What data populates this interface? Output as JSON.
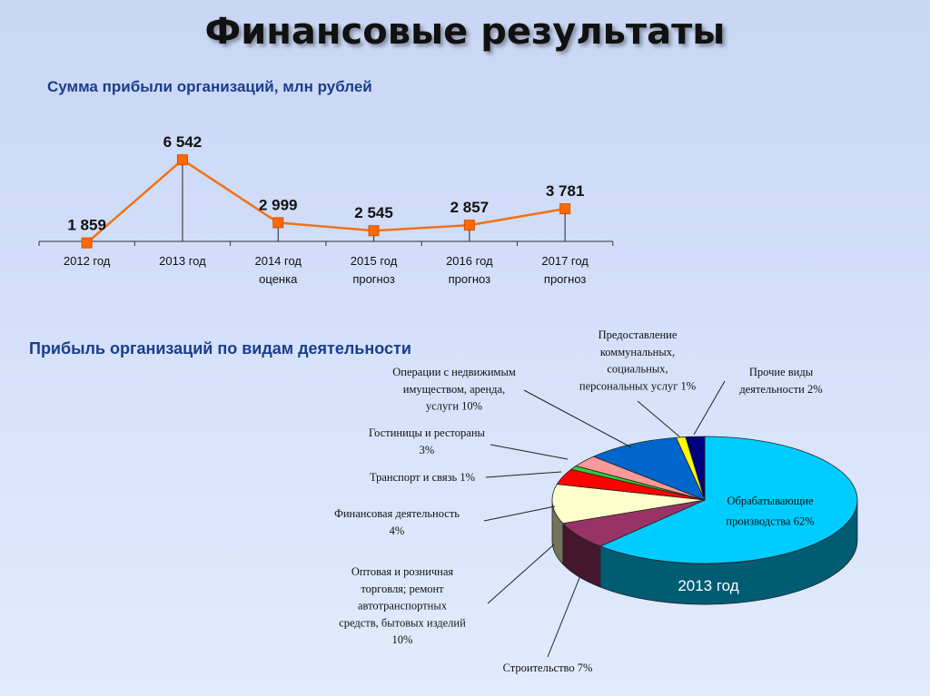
{
  "page": {
    "title": "Финансовые результаты",
    "line_subtitle": "Сумма прибыли организаций, млн рублей",
    "pie_subtitle": "Прибыль организаций по видам деятельности"
  },
  "colors": {
    "line": "#f07214",
    "marker": "#ff6a00",
    "title_blue": "#1c3d8c"
  },
  "chart_data": [
    {
      "type": "line",
      "title": "Сумма прибыли организаций, млн рублей",
      "categories": [
        [
          "2012 год"
        ],
        [
          "2013 год"
        ],
        [
          "2014 год",
          "оценка"
        ],
        [
          "2015 год",
          "прогноз"
        ],
        [
          "2016 год",
          "прогноз"
        ],
        [
          "2017 год",
          "прогноз"
        ]
      ],
      "values": [
        1859,
        6542,
        2999,
        2545,
        2857,
        3781
      ],
      "value_labels": [
        "1 859",
        "6 542",
        "2 999",
        "2 545",
        "2 857",
        "3 781"
      ],
      "marker": "square",
      "grid": false
    },
    {
      "type": "pie",
      "style": "3d",
      "title": "Прибыль организаций по видам деятельности",
      "center_label": "2013 год",
      "slices": [
        {
          "label": "Обрабатывающие производства 62%",
          "value": 62,
          "color": "#00ccff"
        },
        {
          "label": "Строительство 7%",
          "value": 7,
          "color": "#993366"
        },
        {
          "label": "Оптовая и розничная торговля; ремонт автотранспортных средств, бытовых изделий 10%",
          "value": 10,
          "color": "#ffffcc"
        },
        {
          "label": "Финансовая деятельность 4%",
          "value": 4,
          "color": "#ff0000"
        },
        {
          "label": "Транспорт и связь 1%",
          "value": 1,
          "color": "#33cc33"
        },
        {
          "label": "Гостиницы и рестораны 3%",
          "value": 3,
          "color": "#ff9999"
        },
        {
          "label": "Операции с недвижимым имуществом, аренда, услуги 10%",
          "value": 10,
          "color": "#0066cc"
        },
        {
          "label": "Предоставление коммунальных, социальных, персональных услуг 1%",
          "value": 1,
          "color": "#ffff00"
        },
        {
          "label": "Прочие виды деятельности 2%",
          "value": 2,
          "color": "#000080"
        }
      ],
      "label_lines": {
        "s0": [
          "Обрабатывающие",
          "производства 62%"
        ],
        "s1": [
          "Строительство 7%"
        ],
        "s2": [
          "Оптовая и розничная",
          "торговля; ремонт",
          "автотранспортных",
          "средств, бытовых изделий",
          "10%"
        ],
        "s3": [
          "Финансовая деятельность",
          "4%"
        ],
        "s4": [
          "Транспорт и связь 1%"
        ],
        "s5": [
          "Гостиницы и рестораны",
          "3%"
        ],
        "s6": [
          "Операции с недвижимым",
          "имуществом, аренда,",
          "услуги 10%"
        ],
        "s7": [
          "Предоставление",
          "коммунальных,",
          "социальных,",
          "персональных услуг 1%"
        ],
        "s8": [
          "Прочие виды",
          "деятельности 2%"
        ]
      }
    }
  ]
}
